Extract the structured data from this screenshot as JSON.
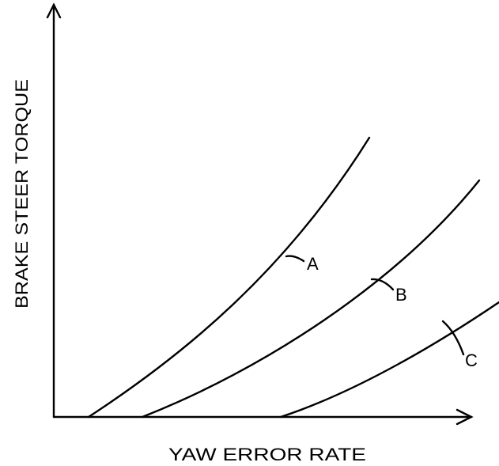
{
  "axes": {
    "y_label": "BRAKE STEER TORQUE",
    "x_label": "YAW ERROR RATE"
  },
  "curves": [
    {
      "label": "A"
    },
    {
      "label": "B"
    },
    {
      "label": "C"
    }
  ]
}
